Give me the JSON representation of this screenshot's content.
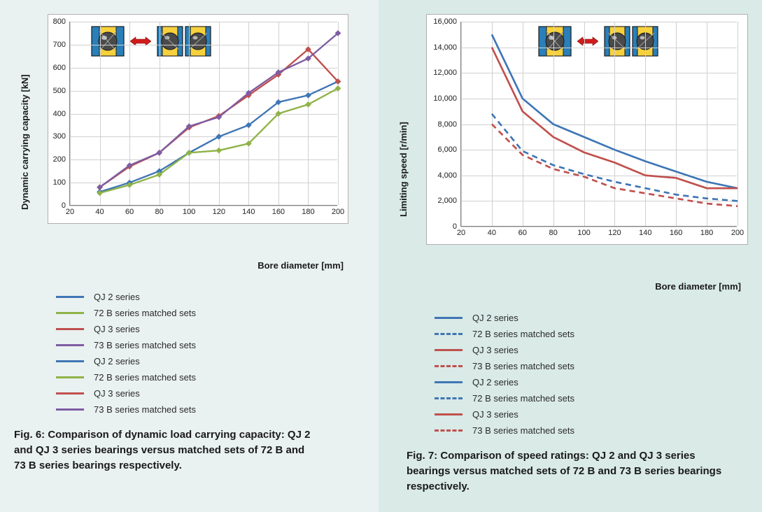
{
  "colors": {
    "panel_left_bg": "#eaf1f1",
    "panel_right_bg": "#d9eae7",
    "chart_bg": "#ffffff",
    "chart_border": "#b0b0b0",
    "grid": "#d0d0d0",
    "axis": "#808080",
    "tick_text": "#404040",
    "label_text": "#1a1a1a",
    "series_qj2": "#3f76b5",
    "series_72b": "#8fb347",
    "series_qj3": "#c0504d",
    "series_73b": "#7e5ca3",
    "series_72b_dash": "#3f76b5",
    "series_73b_dash": "#c0504d",
    "arrow": "#d11c1c"
  },
  "fig6": {
    "type": "line",
    "ylabel": "Dynamic carrying capacity [kN]",
    "xlabel": "Bore diameter [mm]",
    "xlim": [
      20,
      200
    ],
    "ylim": [
      0,
      800
    ],
    "xticks": [
      20,
      40,
      60,
      80,
      100,
      120,
      140,
      160,
      180,
      200
    ],
    "yticks": [
      0,
      100,
      200,
      300,
      400,
      500,
      600,
      700,
      800
    ],
    "x": [
      40,
      60,
      80,
      100,
      120,
      140,
      160,
      180,
      200
    ],
    "series": [
      {
        "key": "qj2",
        "label": "QJ 2 series",
        "dash": "solid",
        "color": "#3f76b5",
        "y": [
          60,
          100,
          150,
          230,
          300,
          350,
          450,
          480,
          540
        ]
      },
      {
        "key": "72b",
        "label": "72 B series matched sets",
        "dash": "solid",
        "color": "#8fb347",
        "y": [
          55,
          90,
          135,
          230,
          240,
          270,
          400,
          440,
          510
        ]
      },
      {
        "key": "qj3",
        "label": "QJ 3 series",
        "dash": "solid",
        "color": "#c0504d",
        "y": [
          80,
          170,
          230,
          340,
          390,
          480,
          570,
          680,
          540
        ]
      },
      {
        "key": "73b",
        "label": "73 B series matched sets",
        "dash": "solid",
        "color": "#7e5ca3",
        "y": [
          80,
          175,
          230,
          345,
          385,
          490,
          580,
          640,
          750
        ]
      }
    ],
    "markers": true,
    "line_width": 2.2,
    "caption_label": "Fig. 6",
    "caption_text": ": Comparison of dynamic load carrying capacity: QJ 2 and QJ 3 series bearings versus matched sets of 72 B and 73 B series bearings respectively."
  },
  "fig7": {
    "type": "line",
    "ylabel": "Limiting speed  [r/min]",
    "xlabel": "Bore diameter [mm]",
    "xlim": [
      20,
      200
    ],
    "ylim": [
      0,
      16000
    ],
    "xticks": [
      20,
      40,
      60,
      80,
      100,
      120,
      140,
      160,
      180,
      200
    ],
    "yticks": [
      0,
      2000,
      4000,
      6000,
      8000,
      10000,
      12000,
      14000,
      16000
    ],
    "ytick_labels": [
      "0",
      "2,000",
      "4,000",
      "6,000",
      "8,000",
      "10,000",
      "12,000",
      "14,000",
      "16,000"
    ],
    "x": [
      40,
      60,
      80,
      100,
      120,
      140,
      160,
      180,
      200
    ],
    "series": [
      {
        "key": "qj2",
        "label": "QJ 2 series",
        "dash": "solid",
        "color": "#3f76b5",
        "y": [
          15000,
          10000,
          8000,
          7000,
          6000,
          5100,
          4300,
          3500,
          3000
        ]
      },
      {
        "key": "72b",
        "label": "72 B series matched sets",
        "dash": "dashed",
        "color": "#3f76b5",
        "y": [
          8800,
          5900,
          4800,
          4100,
          3500,
          3000,
          2500,
          2200,
          2000
        ]
      },
      {
        "key": "qj3",
        "label": "QJ 3 series",
        "dash": "solid",
        "color": "#c0504d",
        "y": [
          14000,
          9000,
          7000,
          5800,
          5000,
          4000,
          3800,
          3000,
          3000
        ]
      },
      {
        "key": "73b",
        "label": "73 B series matched sets",
        "dash": "dashed",
        "color": "#c0504d",
        "y": [
          8000,
          5600,
          4500,
          3900,
          3000,
          2600,
          2200,
          1800,
          1600
        ]
      }
    ],
    "markers": false,
    "line_width": 2.5,
    "caption_label": "Fig. 7",
    "caption_text": ": Comparison of speed ratings: QJ 2 and QJ 3 series bearings versus matched sets of 72 B and 73 B series bearings respectively."
  },
  "bearing_icon": {
    "outer_color": "#2a7fb8",
    "inner_color": "#f7d13d",
    "ball_color": "#4a4a4a",
    "outline": "#1a1a1a"
  }
}
